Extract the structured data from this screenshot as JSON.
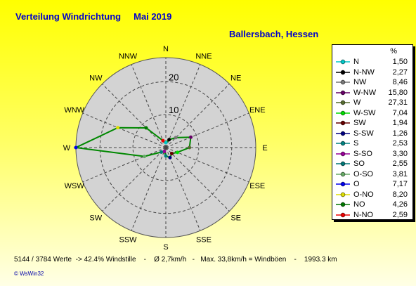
{
  "title": "Verteilung Windrichtung",
  "month": "Mai 2019",
  "location": "Ballersbach, Hessen",
  "legend_header": "%",
  "footer": {
    "counts": "5144 / 3784 Werte",
    "calm": "-> 42.4% Windstille",
    "sep1": "-",
    "avg": "Ø 2,7km/h",
    "sep2": "-",
    "max": "Max. 33,8km/h = Windböen",
    "sep3": "-",
    "elevation": "1993.3 km"
  },
  "brand": "© WsWin32",
  "chart_data": {
    "type": "radar",
    "rings": [
      10,
      20
    ],
    "ring_labels": [
      "10",
      "20"
    ],
    "rmax": 27.31,
    "plot_directions": [
      "N",
      "NNE",
      "NE",
      "ENE",
      "E",
      "ESE",
      "SE",
      "SSE",
      "S",
      "SSW",
      "SW",
      "WSW",
      "W",
      "WNW",
      "NW",
      "NNW"
    ],
    "values": [
      1.5,
      2.59,
      4.26,
      8.2,
      7.17,
      3.81,
      2.55,
      3.3,
      2.53,
      1.26,
      1.94,
      7.04,
      27.31,
      15.8,
      8.46,
      2.27
    ],
    "series_colors": [
      "#00c8c8",
      "#000000",
      "#777777",
      "#660066",
      "#556b2f",
      "#00dd00",
      "#660000",
      "#000080",
      "#008080",
      "#990099",
      "#007777",
      "#66aa66",
      "#0000ee",
      "#dddd00",
      "#007700",
      "#ee0000"
    ],
    "legend": [
      {
        "name": "N",
        "value": "1,50",
        "color": "#00c8c8"
      },
      {
        "name": "N-NW",
        "value": "2,27",
        "color": "#000000"
      },
      {
        "name": "NW",
        "value": "8,46",
        "color": "#777777"
      },
      {
        "name": "W-NW",
        "value": "15,80",
        "color": "#660066"
      },
      {
        "name": "W",
        "value": "27,31",
        "color": "#556b2f"
      },
      {
        "name": "W-SW",
        "value": "7,04",
        "color": "#00dd00"
      },
      {
        "name": "SW",
        "value": "1,94",
        "color": "#660000"
      },
      {
        "name": "S-SW",
        "value": "1,26",
        "color": "#000080"
      },
      {
        "name": "S",
        "value": "2,53",
        "color": "#008080"
      },
      {
        "name": "S-SO",
        "value": "3,30",
        "color": "#990099"
      },
      {
        "name": "SO",
        "value": "2,55",
        "color": "#007777"
      },
      {
        "name": "O-SO",
        "value": "3,81",
        "color": "#66aa66"
      },
      {
        "name": "O",
        "value": "7,17",
        "color": "#0000ee"
      },
      {
        "name": "O-NO",
        "value": "8,20",
        "color": "#dddd00"
      },
      {
        "name": "NO",
        "value": "4,26",
        "color": "#007700"
      },
      {
        "name": "N-NO",
        "value": "2,59",
        "color": "#ee0000"
      }
    ]
  }
}
